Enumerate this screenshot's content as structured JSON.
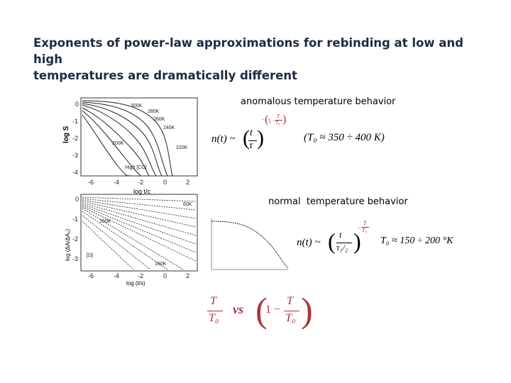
{
  "title": {
    "line1": "Exponents of power-law approximations for rebinding at low and high",
    "line2": "temperatures are dramatically different"
  },
  "captions": {
    "anomalous": "anomalous temperature behavior",
    "normal": "normal  temperature behavior"
  },
  "fig_top": {
    "ylabel": "log S",
    "xlabel": "log t/c",
    "yticks": [
      "0",
      "-1",
      "-2",
      "-3",
      "-4"
    ],
    "xticks": [
      "-6",
      "-4",
      "-2",
      "0",
      "2"
    ],
    "curve_labels": [
      "300K",
      "280K",
      "260K",
      "240K",
      "200K",
      "220K",
      "High [CO]"
    ]
  },
  "fig_bottom": {
    "ylabel": "log (ΔA/ΔA₀)",
    "xlabel": "log (t/s)",
    "yticks": [
      "0",
      "-1",
      "-2",
      "-3"
    ],
    "xticks": [
      "-6",
      "-4",
      "-2",
      "0",
      "2"
    ],
    "curve_labels": [
      "60K",
      "160K",
      "160K",
      "[D]"
    ]
  },
  "equations": {
    "anomalous_lhs": "n(t) ~",
    "anomalous_t": "t",
    "anomalous_tau": "τ",
    "anomalous_exp_num": "T",
    "anomalous_exp_den": "T₀",
    "anomalous_exp_one": "1 −",
    "anomalous_T0": "(T₀ ≈ 350 ÷ 400 K)",
    "normal_lhs": "n(t) ~",
    "normal_t": "t",
    "normal_tau": "τ₁/₂",
    "normal_exp_minus": "−",
    "normal_exp_num": "T",
    "normal_exp_den": "T₀",
    "normal_T0": "T₀ ≈ 150 ÷ 200 °K",
    "cmp_num": "T",
    "cmp_den": "T₀",
    "cmp_vs": "vs",
    "cmp_one": "1 −",
    "cmp_num2": "T",
    "cmp_den2": "T₀"
  },
  "colors": {
    "title": "#1f2a44",
    "exponent_red": "#b0303a"
  }
}
